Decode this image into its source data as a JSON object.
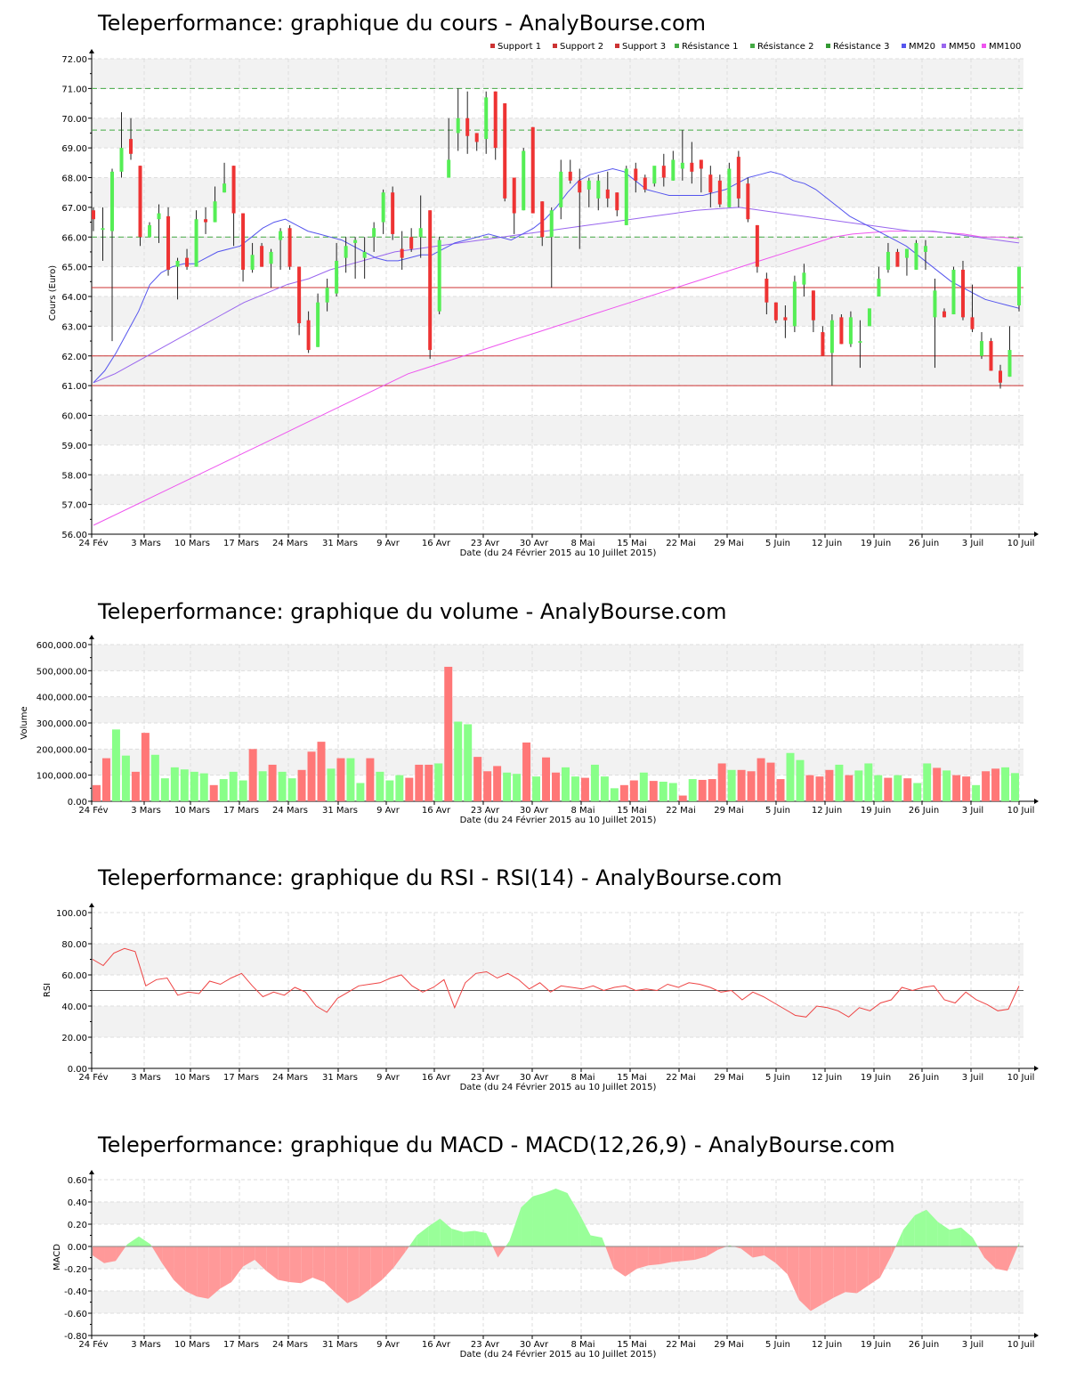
{
  "colors": {
    "support": "#cc3333",
    "resistance": "#339933",
    "resistance_line": "#44aa44",
    "mm20": "#5555ee",
    "mm50": "#9966ee",
    "mm100": "#ee55ee",
    "up": "#55ee55",
    "down": "#ee3333",
    "vol_up": "#88ff88",
    "vol_down": "#ff7777",
    "rsi_line": "#ee4444",
    "macd_pos": "#99ff99",
    "macd_neg": "#ff9999"
  },
  "dates": [
    "24 Fév",
    "3 Mars",
    "10 Mars",
    "17 Mars",
    "24 Mars",
    "31 Mars",
    "9 Avr",
    "16 Avr",
    "23 Avr",
    "30 Avr",
    "8 Mai",
    "15 Mai",
    "22 Mai",
    "29 Mai",
    "5 Juin",
    "12 Juin",
    "19 Juin",
    "26 Juin",
    "3 Juil",
    "10 Juil"
  ],
  "xlabel": "Date (du 24 Février 2015 au 10 Juillet 2015)",
  "chart_data": [
    {
      "type": "candlestick",
      "title": "Teleperformance: graphique du cours - AnalyBourse.com",
      "ylabel": "Cours (Euro)",
      "ylim": [
        56,
        72
      ],
      "yticks": [
        "56.00",
        "57.00",
        "58.00",
        "59.00",
        "60.00",
        "61.00",
        "62.00",
        "63.00",
        "64.00",
        "65.00",
        "66.00",
        "67.00",
        "68.00",
        "69.00",
        "70.00",
        "71.00",
        "72.00"
      ],
      "legend": [
        "Support 1",
        "Support 2",
        "Support 3",
        "Résistance 1",
        "Résistance 2",
        "Résistance 3",
        "MM20",
        "MM50",
        "MM100"
      ],
      "levels": {
        "support1": 61.0,
        "support2": 62.0,
        "support3": 64.3,
        "resistance1": 66.0,
        "resistance2": 69.6,
        "resistance3": 71.0
      },
      "ohlc": [
        [
          66.9,
          67.0,
          66.2,
          66.6
        ],
        [
          66.3,
          67.0,
          65.2,
          66.3
        ],
        [
          66.2,
          68.3,
          62.5,
          68.2
        ],
        [
          68.2,
          70.2,
          68.0,
          69.0
        ],
        [
          69.3,
          70.0,
          68.6,
          68.8
        ],
        [
          68.4,
          68.4,
          65.7,
          66.0
        ],
        [
          66.0,
          66.5,
          66.0,
          66.4
        ],
        [
          66.6,
          67.1,
          65.8,
          66.8
        ],
        [
          66.7,
          67.0,
          64.7,
          64.9
        ],
        [
          65.0,
          65.3,
          63.9,
          65.2
        ],
        [
          65.3,
          65.6,
          64.9,
          65.0
        ],
        [
          65.0,
          66.9,
          65.0,
          66.6
        ],
        [
          66.6,
          67.0,
          66.1,
          66.5
        ],
        [
          66.5,
          67.7,
          66.5,
          67.2
        ],
        [
          67.5,
          68.5,
          67.5,
          67.8
        ],
        [
          68.4,
          68.4,
          65.7,
          66.8
        ],
        [
          66.8,
          66.8,
          64.5,
          64.9
        ],
        [
          64.9,
          65.8,
          64.8,
          65.4
        ],
        [
          65.7,
          65.8,
          65.0,
          65.0
        ],
        [
          65.1,
          65.6,
          64.3,
          65.5
        ],
        [
          65.9,
          66.3,
          64.9,
          66.2
        ],
        [
          66.3,
          66.4,
          64.9,
          65.0
        ],
        [
          65.0,
          65.0,
          62.7,
          63.1
        ],
        [
          63.2,
          63.5,
          62.1,
          62.2
        ],
        [
          62.3,
          64.1,
          62.3,
          63.8
        ],
        [
          63.8,
          64.6,
          63.5,
          64.3
        ],
        [
          64.1,
          65.8,
          64.0,
          65.2
        ],
        [
          65.3,
          66.0,
          64.8,
          65.7
        ],
        [
          65.8,
          66.0,
          64.6,
          65.9
        ],
        [
          65.3,
          66.0,
          64.6,
          65.5
        ],
        [
          66.0,
          66.5,
          65.5,
          66.3
        ],
        [
          66.5,
          67.6,
          66.1,
          67.5
        ],
        [
          67.5,
          67.7,
          65.9,
          66.1
        ],
        [
          65.6,
          66.2,
          64.9,
          65.3
        ],
        [
          66.0,
          66.3,
          65.5,
          65.6
        ],
        [
          66.0,
          67.4,
          65.3,
          66.3
        ],
        [
          66.9,
          66.9,
          61.9,
          62.2
        ],
        [
          63.5,
          66.0,
          63.4,
          65.9
        ],
        [
          68.0,
          70.0,
          68.0,
          68.6
        ],
        [
          69.5,
          71.0,
          68.9,
          70.0
        ],
        [
          70.0,
          70.9,
          68.8,
          69.4
        ],
        [
          69.5,
          69.5,
          68.9,
          69.2
        ],
        [
          69.3,
          70.9,
          68.8,
          70.7
        ],
        [
          70.9,
          70.9,
          68.6,
          69.0
        ],
        [
          70.5,
          70.5,
          67.2,
          67.3
        ],
        [
          68.0,
          68.0,
          66.1,
          66.8
        ],
        [
          66.9,
          69.0,
          66.9,
          68.9
        ],
        [
          69.7,
          69.7,
          66.8,
          66.8
        ],
        [
          67.2,
          67.2,
          65.7,
          66.0
        ],
        [
          66.0,
          67.0,
          64.3,
          66.9
        ],
        [
          67.0,
          68.6,
          66.6,
          68.2
        ],
        [
          68.2,
          68.6,
          67.8,
          67.9
        ],
        [
          67.9,
          68.3,
          65.6,
          67.5
        ],
        [
          67.6,
          68.0,
          67.0,
          67.9
        ],
        [
          67.3,
          68.1,
          66.9,
          67.9
        ],
        [
          67.6,
          68.2,
          67.0,
          67.3
        ],
        [
          67.5,
          67.5,
          66.7,
          66.9
        ],
        [
          66.4,
          68.4,
          66.4,
          68.3
        ],
        [
          68.3,
          68.5,
          67.5,
          67.9
        ],
        [
          68.0,
          68.1,
          67.5,
          67.6
        ],
        [
          67.8,
          68.3,
          67.7,
          68.4
        ],
        [
          68.4,
          68.8,
          67.7,
          68.0
        ],
        [
          67.9,
          68.9,
          67.9,
          68.6
        ],
        [
          68.3,
          69.6,
          67.9,
          68.5
        ],
        [
          68.5,
          69.2,
          67.8,
          68.2
        ],
        [
          68.6,
          68.6,
          67.5,
          68.3
        ],
        [
          68.1,
          68.4,
          67.0,
          67.5
        ],
        [
          67.9,
          68.1,
          67.0,
          67.1
        ],
        [
          67.0,
          68.5,
          67.0,
          68.3
        ],
        [
          68.7,
          68.9,
          67.0,
          67.3
        ],
        [
          67.8,
          68.0,
          66.5,
          66.6
        ],
        [
          66.4,
          66.4,
          64.8,
          65.0
        ],
        [
          64.6,
          64.8,
          63.4,
          63.8
        ],
        [
          63.8,
          63.8,
          63.1,
          63.2
        ],
        [
          63.3,
          63.7,
          62.6,
          63.2
        ],
        [
          63.0,
          64.7,
          62.8,
          64.5
        ],
        [
          64.4,
          65.1,
          64.0,
          64.8
        ],
        [
          64.2,
          64.2,
          62.8,
          63.2
        ],
        [
          62.8,
          63.0,
          62.0,
          62.0
        ],
        [
          62.1,
          63.4,
          61.0,
          63.2
        ],
        [
          63.3,
          63.4,
          62.4,
          62.4
        ],
        [
          62.4,
          63.5,
          62.3,
          63.3
        ],
        [
          62.5,
          63.2,
          61.6,
          62.5
        ],
        [
          63.0,
          63.5,
          63.0,
          63.6
        ],
        [
          64.0,
          65.0,
          64.0,
          64.6
        ],
        [
          64.9,
          65.8,
          64.8,
          65.5
        ],
        [
          65.5,
          65.6,
          65.1,
          65.0
        ],
        [
          65.3,
          65.6,
          64.7,
          65.6
        ],
        [
          64.9,
          65.9,
          64.9,
          65.8
        ],
        [
          65.5,
          65.9,
          64.9,
          65.7
        ],
        [
          63.3,
          64.6,
          61.6,
          64.2
        ],
        [
          63.5,
          63.6,
          63.3,
          63.3
        ],
        [
          63.4,
          65.0,
          63.4,
          64.9
        ],
        [
          64.9,
          65.2,
          63.2,
          63.3
        ],
        [
          63.3,
          64.4,
          62.8,
          62.9
        ],
        [
          62.0,
          62.8,
          61.9,
          62.5
        ],
        [
          62.5,
          62.6,
          61.5,
          61.5
        ],
        [
          61.5,
          61.7,
          60.9,
          61.1
        ],
        [
          61.3,
          63.0,
          61.3,
          62.2
        ],
        [
          63.7,
          65.0,
          63.5,
          65.0
        ]
      ],
      "mm20": [
        61.1,
        61.5,
        62.1,
        62.8,
        63.5,
        64.4,
        64.8,
        65.0,
        65.1,
        65.1,
        65.3,
        65.5,
        65.6,
        65.7,
        66.0,
        66.3,
        66.5,
        66.6,
        66.4,
        66.2,
        66.1,
        66.0,
        65.9,
        65.7,
        65.5,
        65.3,
        65.2,
        65.2,
        65.3,
        65.4,
        65.4,
        65.6,
        65.8,
        65.9,
        66.0,
        66.1,
        66.0,
        65.9,
        66.1,
        66.3,
        66.6,
        67.0,
        67.5,
        67.9,
        68.1,
        68.2,
        68.3,
        68.2,
        67.9,
        67.6,
        67.5,
        67.4,
        67.4,
        67.4,
        67.4,
        67.5,
        67.6,
        67.8,
        68.0,
        68.1,
        68.2,
        68.1,
        67.9,
        67.8,
        67.6,
        67.3,
        67.0,
        66.7,
        66.5,
        66.3,
        66.1,
        65.9,
        65.7,
        65.4,
        65.1,
        64.8,
        64.5,
        64.3,
        64.1,
        63.9,
        63.8,
        63.7,
        63.6
      ],
      "mm50": [
        61.1,
        61.4,
        61.8,
        62.2,
        62.6,
        63.0,
        63.4,
        63.8,
        64.1,
        64.4,
        64.6,
        64.9,
        65.1,
        65.3,
        65.5,
        65.6,
        65.7,
        65.8,
        65.9,
        66.0,
        66.1,
        66.2,
        66.3,
        66.4,
        66.5,
        66.6,
        66.7,
        66.8,
        66.9,
        66.95,
        67.0,
        66.9,
        66.8,
        66.7,
        66.6,
        66.5,
        66.4,
        66.3,
        66.2,
        66.2,
        66.1,
        66.0,
        65.9,
        65.8
      ],
      "mm100": [
        56.3,
        56.6,
        56.9,
        57.2,
        57.5,
        57.8,
        58.1,
        58.4,
        58.7,
        59.0,
        59.3,
        59.6,
        59.9,
        60.2,
        60.5,
        60.8,
        61.1,
        61.4,
        61.6,
        61.8,
        62.0,
        62.2,
        62.4,
        62.6,
        62.8,
        63.0,
        63.2,
        63.4,
        63.6,
        63.8,
        64.0,
        64.2,
        64.4,
        64.6,
        64.8,
        65.0,
        65.2,
        65.4,
        65.6,
        65.8,
        66.0,
        66.1,
        66.15,
        66.2,
        66.2,
        66.2,
        66.15,
        66.1,
        66.0,
        66.0,
        65.95
      ]
    },
    {
      "type": "bar",
      "title": "Teleperformance: graphique du volume - AnalyBourse.com",
      "ylabel": "Volume",
      "ylim": [
        0,
        600000
      ],
      "yticks": [
        "0.00",
        "100,000.00",
        "200,000.00",
        "300,000.00",
        "400,000.00",
        "500,000.00",
        "600,000.00"
      ],
      "values": [
        62000,
        165000,
        275000,
        175000,
        113000,
        262000,
        178000,
        88000,
        130000,
        122000,
        113000,
        107000,
        62000,
        85000,
        113000,
        80000,
        200000,
        115000,
        140000,
        113000,
        88000,
        120000,
        190000,
        228000,
        125000,
        165000,
        165000,
        70000,
        165000,
        113000,
        80000,
        100000,
        90000,
        140000,
        140000,
        145000,
        515000,
        305000,
        295000,
        170000,
        115000,
        135000,
        110000,
        105000,
        225000,
        95000,
        168000,
        110000,
        130000,
        95000,
        90000,
        140000,
        95000,
        50000,
        62000,
        80000,
        110000,
        78000,
        75000,
        70000,
        22000,
        85000,
        82000,
        85000,
        145000,
        120000,
        120000,
        115000,
        165000,
        148000,
        85000,
        185000,
        158000,
        100000,
        95000,
        120000,
        140000,
        100000,
        118000,
        145000,
        100000,
        90000,
        100000,
        88000,
        70000,
        145000,
        128000,
        118000,
        100000,
        95000,
        62000,
        115000,
        125000,
        130000,
        108000
      ],
      "up": [
        false,
        false,
        true,
        true,
        false,
        false,
        true,
        true,
        true,
        true,
        true,
        true,
        false,
        true,
        true,
        true,
        false,
        true,
        false,
        true,
        true,
        false,
        false,
        false,
        true,
        false,
        true,
        true,
        false,
        true,
        true,
        true,
        false,
        false,
        false,
        true,
        false,
        true,
        true,
        false,
        false,
        false,
        true,
        true,
        false,
        true,
        false,
        false,
        true,
        true,
        false,
        true,
        true,
        true,
        false,
        false,
        true,
        false,
        true,
        true,
        false,
        true,
        false,
        false,
        false,
        true,
        false,
        false,
        false,
        false,
        false,
        true,
        true,
        false,
        false,
        false,
        true,
        false,
        true,
        true,
        true,
        false,
        true,
        false,
        true,
        true,
        false,
        true,
        false,
        false,
        true,
        false,
        false,
        true,
        true
      ]
    },
    {
      "type": "line",
      "title": "Teleperformance: graphique du RSI - RSI(14) - AnalyBourse.com",
      "ylabel": "RSI",
      "ylim": [
        0,
        100
      ],
      "yticks": [
        "0.00",
        "20.00",
        "40.00",
        "60.00",
        "80.00",
        "100.00"
      ],
      "reference": 50,
      "values": [
        70,
        66,
        74,
        77,
        75,
        53,
        57,
        58,
        47,
        49,
        48,
        56,
        54,
        58,
        61,
        53,
        46,
        49,
        47,
        52,
        49,
        40,
        36,
        45,
        49,
        53,
        54,
        55,
        58,
        60,
        53,
        49,
        52,
        57,
        39,
        55,
        61,
        62,
        58,
        61,
        57,
        51,
        55,
        49,
        53,
        52,
        51,
        53,
        50,
        52,
        53,
        50,
        51,
        50,
        54,
        52,
        55,
        54,
        52,
        49,
        50,
        44,
        49,
        46,
        42,
        38,
        34,
        33,
        40,
        39,
        37,
        33,
        39,
        37,
        42,
        44,
        52,
        50,
        52,
        53,
        44,
        42,
        49,
        44,
        41,
        37,
        38,
        53
      ]
    },
    {
      "type": "area",
      "title": "Teleperformance: graphique du MACD - MACD(12,26,9) - AnalyBourse.com",
      "ylabel": "MACD",
      "ylim": [
        -0.8,
        0.6
      ],
      "yticks": [
        "-0.80",
        "-0.60",
        "-0.40",
        "-0.20",
        "0.00",
        "0.20",
        "0.40",
        "0.60"
      ],
      "values": [
        -0.08,
        -0.15,
        -0.13,
        0.02,
        0.09,
        0.02,
        -0.15,
        -0.3,
        -0.4,
        -0.45,
        -0.47,
        -0.38,
        -0.32,
        -0.18,
        -0.12,
        -0.22,
        -0.3,
        -0.32,
        -0.33,
        -0.28,
        -0.32,
        -0.42,
        -0.51,
        -0.46,
        -0.38,
        -0.3,
        -0.19,
        -0.05,
        0.1,
        0.18,
        0.25,
        0.16,
        0.13,
        0.14,
        0.12,
        -0.1,
        0.05,
        0.35,
        0.45,
        0.48,
        0.52,
        0.48,
        0.3,
        0.1,
        0.08,
        -0.2,
        -0.27,
        -0.2,
        -0.17,
        -0.16,
        -0.14,
        -0.13,
        -0.12,
        -0.09,
        -0.03,
        0.01,
        -0.02,
        -0.1,
        -0.08,
        -0.15,
        -0.25,
        -0.48,
        -0.58,
        -0.52,
        -0.46,
        -0.41,
        -0.42,
        -0.35,
        -0.28,
        -0.08,
        0.15,
        0.28,
        0.33,
        0.22,
        0.15,
        0.17,
        0.08,
        -0.1,
        -0.2,
        -0.22,
        0.03
      ]
    }
  ]
}
